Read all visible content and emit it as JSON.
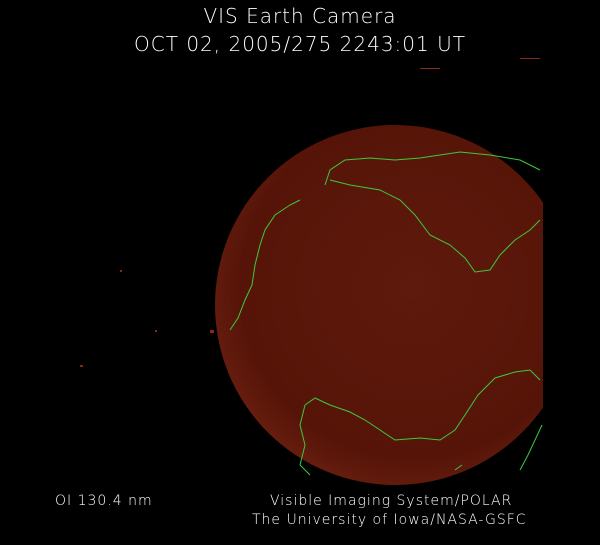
{
  "header": {
    "title": "VIS Earth Camera",
    "datetime": "OCT 02, 2005/275 2243:01 UT"
  },
  "footer": {
    "filter": "OI  130.4 nm",
    "credit_line1": "Visible Imaging System/POLAR",
    "credit_line2": "The University of Iowa/NASA-GSFC"
  },
  "colors": {
    "background": "#000000",
    "earth_disk": "#5a1508",
    "coastline": "#3ec83e",
    "text": "#ffffff"
  }
}
